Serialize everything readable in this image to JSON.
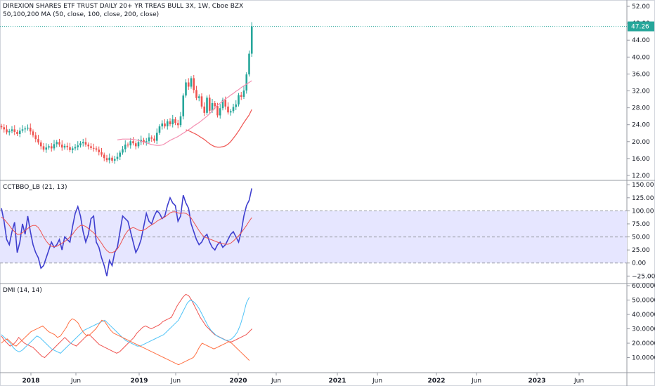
{
  "header": {
    "title": "DIREXION SHARES ETF TRUST DAILY 20+ YR TREAS BULL 3X, 1W, Cboe BZX",
    "ma_label": "50,100,200 MA (50, close, 100, close, 200, close)",
    "cct_label": "CCTBBO_LB (21, 13)",
    "dmi_label": "DMI (14, 14)"
  },
  "colors": {
    "up": "#26a69a",
    "down": "#ef5350",
    "ma1": "#ef5350",
    "ma2": "#f48fb1",
    "cct_main": "#3f3fcf",
    "cct_signal": "#ef5350",
    "band": "#e6e6ff",
    "dmi_plus": "#4fc3f7",
    "dmi_minus": "#ff7043",
    "adx": "#ef5350",
    "last_price": "#26a69a"
  },
  "chart_data": [
    {
      "type": "candlestick",
      "title": "DIREXION SHARES ETF TRUST DAILY 20+ YR TREAS BULL 3X, 1W, Cboe BZX",
      "ylim": [
        11,
        53.5
      ],
      "y_ticks": [
        "52.00",
        "48.00",
        "44.00",
        "40.00",
        "36.00",
        "32.00",
        "28.00",
        "24.00",
        "20.00",
        "16.00",
        "12.00"
      ],
      "last_price": "47.26",
      "closes": [
        23.4,
        22.9,
        22.2,
        22.5,
        22.9,
        22.3,
        21.8,
        22.6,
        22.9,
        23.1,
        23.3,
        22.4,
        21.5,
        20.6,
        19.8,
        18.9,
        18.1,
        18.6,
        18.9,
        18.4,
        19.4,
        19.9,
        19.3,
        18.6,
        19.0,
        18.7,
        18.0,
        18.4,
        18.7,
        19.1,
        19.6,
        19.9,
        19.3,
        18.9,
        18.5,
        18.4,
        18.1,
        17.5,
        16.9,
        16.1,
        15.6,
        16.2,
        15.5,
        15.9,
        16.4,
        17.4,
        18.2,
        19.3,
        19.1,
        20.1,
        19.6,
        18.9,
        19.9,
        20.4,
        19.8,
        20.1,
        21.0,
        20.7,
        20.2,
        22.1,
        23.6,
        24.3,
        23.6,
        24.8,
        24.1,
        25.3,
        24.4,
        23.9,
        26.0,
        30.9,
        34.0,
        33.0,
        35.0,
        32.2,
        30.3,
        30.7,
        28.3,
        26.8,
        30.4,
        27.3,
        29.1,
        28.4,
        26.2,
        27.9,
        29.9,
        28.3,
        26.9,
        27.2,
        28.2,
        28.8,
        31.0,
        30.6,
        32.1,
        35.9,
        40.8,
        47.26
      ],
      "ma": [
        {
          "values": [
            22.8,
            22.6,
            22.3,
            22.0,
            21.7,
            21.3,
            20.9,
            20.5,
            20.0,
            19.5,
            19.1,
            18.8,
            18.7,
            18.7,
            18.8,
            19.0,
            19.4,
            20.0,
            20.8,
            21.6,
            22.5,
            23.5,
            24.5,
            25.4,
            26.3,
            27.6
          ]
        },
        {
          "values": [
            20.4,
            20.5,
            20.6,
            20.6,
            20.6,
            20.6,
            20.5,
            20.4,
            20.3,
            20.1,
            19.9,
            19.7,
            19.5,
            19.3,
            19.2,
            19.1,
            19.1,
            19.2,
            19.5,
            19.9,
            20.3,
            20.6,
            20.9,
            21.2,
            21.6,
            22.0,
            22.4,
            22.8,
            23.2,
            23.7,
            24.1,
            24.5,
            25.0,
            25.5,
            26.0,
            26.6,
            27.3,
            28.0,
            28.6,
            29.1,
            29.6,
            30.1,
            30.5,
            31.0,
            31.4,
            31.9,
            32.3,
            32.8,
            33.2,
            33.6,
            34.0,
            34.4
          ]
        }
      ]
    },
    {
      "type": "line",
      "title": "CCTBBO_LB (21, 13)",
      "ylim": [
        -38,
        157
      ],
      "y_ticks": [
        "150.00",
        "125.00",
        "100.00",
        "75.00",
        "50.00",
        "25.00",
        "0.00",
        "−25.00"
      ],
      "band": [
        0,
        100
      ],
      "series": [
        {
          "values": [
            105,
            80,
            45,
            35,
            60,
            78,
            20,
            40,
            75,
            55,
            90,
            60,
            35,
            20,
            10,
            -10,
            -5,
            10,
            25,
            40,
            30,
            35,
            45,
            25,
            50,
            45,
            40,
            70,
            95,
            108,
            90,
            60,
            40,
            55,
            85,
            90,
            40,
            30,
            10,
            -5,
            -25,
            5,
            -5,
            20,
            30,
            60,
            90,
            85,
            80,
            60,
            40,
            20,
            30,
            45,
            70,
            95,
            80,
            75,
            90,
            100,
            95,
            85,
            90,
            110,
            125,
            115,
            110,
            80,
            90,
            130,
            115,
            105,
            75,
            60,
            45,
            35,
            40,
            50,
            55,
            40,
            30,
            25,
            35,
            40,
            30,
            35,
            45,
            55,
            60,
            50,
            40,
            60,
            90,
            110,
            120,
            143
          ]
        },
        {
          "values": [
            88,
            84,
            78,
            72,
            65,
            60,
            55,
            55,
            58,
            62,
            66,
            70,
            72,
            72,
            68,
            60,
            50,
            42,
            36,
            32,
            31,
            32,
            35,
            38,
            41,
            45,
            50,
            55,
            62,
            68,
            72,
            72,
            70,
            66,
            62,
            58,
            52,
            45,
            38,
            30,
            24,
            20,
            20,
            22,
            27,
            35,
            45,
            55,
            62,
            66,
            68,
            66,
            63,
            62,
            63,
            66,
            70,
            73,
            76,
            80,
            83,
            86,
            88,
            92,
            96,
            98,
            98,
            96,
            95,
            96,
            95,
            92,
            86,
            78,
            70,
            62,
            55,
            50,
            48,
            46,
            44,
            42,
            40,
            38,
            37,
            36,
            36,
            38,
            42,
            47,
            52,
            58,
            65,
            72,
            80,
            87
          ]
        }
      ]
    },
    {
      "type": "line",
      "title": "DMI (14, 14)",
      "ylim": [
        0,
        61
      ],
      "y_ticks": [
        "60.0000",
        "50.0000",
        "40.0000",
        "30.0000",
        "20.0000",
        "10.0000"
      ],
      "series": [
        {
          "values": [
            25,
            22,
            20,
            18,
            19,
            21,
            24,
            22,
            20,
            19,
            18,
            17,
            15,
            13,
            11,
            10,
            12,
            14,
            16,
            18,
            20,
            22,
            24,
            22,
            20,
            19,
            18,
            20,
            22,
            24,
            26,
            25,
            23,
            21,
            19,
            18,
            17,
            16,
            15,
            14,
            13,
            14,
            16,
            18,
            20,
            22,
            24,
            27,
            29,
            31,
            32,
            31,
            30,
            31,
            32,
            33,
            35,
            36,
            37,
            38,
            42,
            46,
            49,
            52,
            54,
            53,
            50,
            46,
            42,
            38,
            35,
            32,
            30,
            28,
            26,
            25,
            24,
            23,
            22,
            21,
            21,
            22,
            23,
            24,
            25,
            26,
            28,
            30
          ]
        },
        {
          "values": [
            26,
            24,
            22,
            20,
            17,
            15,
            14,
            15,
            17,
            19,
            21,
            23,
            25,
            24,
            22,
            20,
            18,
            16,
            15,
            14,
            13,
            15,
            17,
            19,
            21,
            23,
            25,
            27,
            29,
            30,
            31,
            32,
            33,
            34,
            35,
            36,
            34,
            32,
            30,
            28,
            26,
            24,
            22,
            21,
            20,
            19,
            18,
            18,
            19,
            20,
            21,
            22,
            23,
            24,
            25,
            26,
            28,
            30,
            32,
            34,
            36,
            40,
            44,
            48,
            50,
            49,
            47,
            44,
            40,
            36,
            32,
            29,
            27,
            25,
            24,
            23,
            22,
            22,
            23,
            25,
            28,
            33,
            40,
            48,
            52
          ]
        },
        {
          "values": [
            20,
            22,
            23,
            21,
            19,
            18,
            20,
            22,
            24,
            26,
            28,
            29,
            30,
            31,
            32,
            30,
            28,
            27,
            26,
            24,
            25,
            28,
            31,
            35,
            37,
            36,
            34,
            30,
            27,
            25,
            26,
            28,
            30,
            33,
            36,
            35,
            32,
            29,
            27,
            26,
            25,
            24,
            23,
            22,
            21,
            20,
            19,
            18,
            17,
            16,
            15,
            14,
            13,
            12,
            11,
            10,
            9,
            8,
            7,
            6,
            5,
            6,
            7,
            8,
            9,
            10,
            13,
            17,
            20,
            19,
            18,
            17,
            16,
            17,
            18,
            19,
            20,
            21,
            20,
            18,
            16,
            14,
            12,
            10,
            8
          ]
        }
      ]
    }
  ],
  "x_axis": {
    "labels": [
      "2018",
      "Jun",
      "2019",
      "Jun",
      "2020",
      "Jun",
      "2021",
      "Jun",
      "2022",
      "Jun",
      "2023",
      "Jun"
    ],
    "bold": [
      true,
      false,
      true,
      false,
      true,
      false,
      true,
      false,
      true,
      false,
      true,
      false
    ]
  }
}
